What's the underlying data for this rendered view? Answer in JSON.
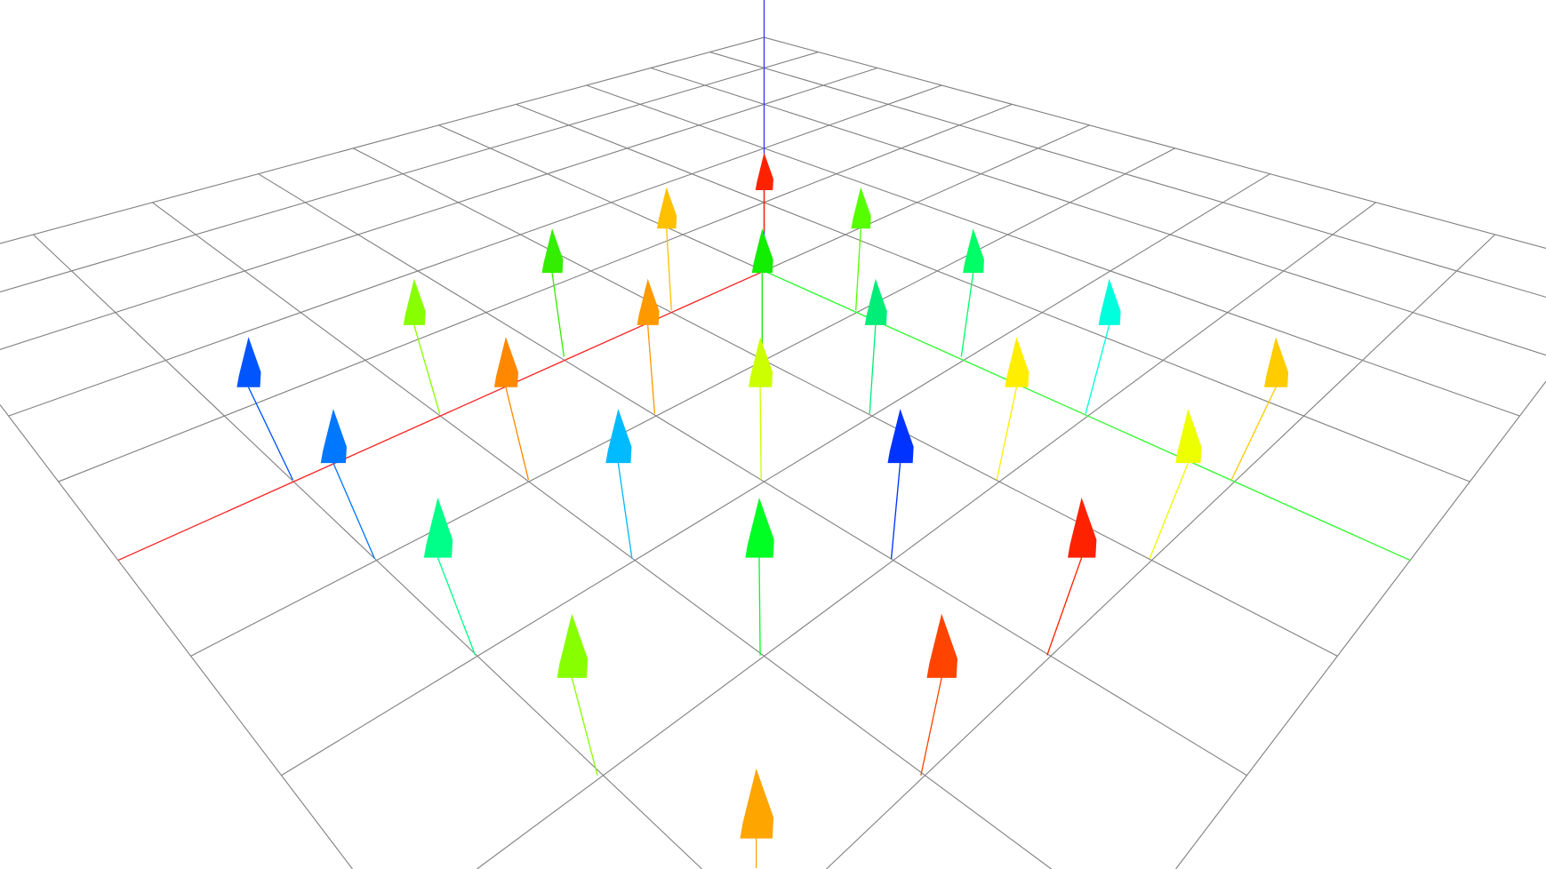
{
  "scene": {
    "background": "#ffffff",
    "grid_color": "#808080",
    "grid_range": [
      -5,
      5
    ],
    "axes": {
      "x_color": "#ff2a2a",
      "y_color": "#33ff33",
      "z_color": "#3333ff"
    },
    "arrow_colors": [
      "#ff2200",
      "#ffc000",
      "#55ff00",
      "#33ee00",
      "#11ee00",
      "#00ff66",
      "#88ff00",
      "#ff9900",
      "#00ee77",
      "#00ffdd",
      "#0055ff",
      "#ff8800",
      "#ccff00",
      "#ffee00",
      "#ffcc00",
      "#0077ff",
      "#00bbff",
      "#0033ff",
      "#eeff00",
      "#00ff88",
      "#00ff22",
      "#ff2200",
      "#88ff00",
      "#ff4400",
      "#ffa500"
    ]
  }
}
